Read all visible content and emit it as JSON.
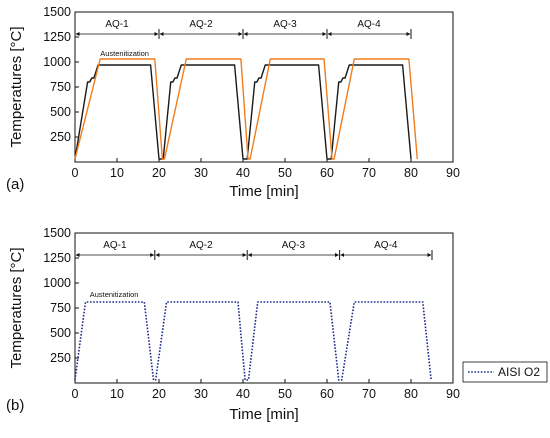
{
  "chart_data": [
    {
      "type": "line",
      "panel_label": "(a)",
      "xlabel": "Time [min]",
      "ylabel": "Temperatures [°C]",
      "xlim": [
        0,
        90
      ],
      "ylim": [
        0,
        1500
      ],
      "xticks": [
        0,
        10,
        20,
        30,
        40,
        50,
        60,
        70,
        80,
        90
      ],
      "yticks": [
        250,
        500,
        750,
        1000,
        1250,
        1500
      ],
      "grid": false,
      "segments": [
        {
          "label": "AQ-1",
          "start": 0,
          "end": 20
        },
        {
          "label": "AQ-2",
          "start": 20,
          "end": 40
        },
        {
          "label": "AQ-3",
          "start": 40,
          "end": 60
        },
        {
          "label": "AQ-4",
          "start": 60,
          "end": 80
        }
      ],
      "annotation": {
        "text": "Austenitization",
        "x": 6,
        "y": 1060
      },
      "series": [
        {
          "color": "#1a1a1a",
          "style": "solid",
          "x": [
            0,
            3,
            3.5,
            4,
            4.5,
            5.5,
            18,
            20,
            21,
            22.8,
            23.3,
            23.8,
            24.3,
            25.3,
            38,
            40,
            41,
            42.8,
            43.3,
            43.8,
            44.3,
            45.3,
            58,
            60,
            61,
            62.8,
            63.3,
            63.8,
            64.3,
            65.3,
            78,
            80
          ],
          "y": [
            30,
            800,
            800,
            840,
            840,
            970,
            970,
            30,
            30,
            800,
            800,
            840,
            840,
            970,
            970,
            30,
            30,
            800,
            800,
            840,
            840,
            970,
            970,
            30,
            30,
            800,
            800,
            840,
            840,
            970,
            970,
            30
          ]
        },
        {
          "color": "#f07d1e",
          "style": "solid",
          "x": [
            0,
            6,
            19,
            20.8,
            21.3,
            26.5,
            39.5,
            41.2,
            41.7,
            46.5,
            59.3,
            61.2,
            61.7,
            66.5,
            79.5,
            81.5
          ],
          "y": [
            30,
            1030,
            1030,
            30,
            30,
            1030,
            1030,
            30,
            30,
            1030,
            1030,
            30,
            30,
            1030,
            1030,
            30
          ]
        }
      ]
    },
    {
      "type": "line",
      "panel_label": "(b)",
      "xlabel": "Time [min]",
      "ylabel": "Temperatures [°C]",
      "xlim": [
        0,
        90
      ],
      "ylim": [
        0,
        1500
      ],
      "xticks": [
        0,
        10,
        20,
        30,
        40,
        50,
        60,
        70,
        80,
        90
      ],
      "yticks": [
        250,
        500,
        750,
        1000,
        1250,
        1500
      ],
      "grid": false,
      "segments": [
        {
          "label": "AQ-1",
          "start": 0,
          "end": 19
        },
        {
          "label": "AQ-2",
          "start": 19,
          "end": 41
        },
        {
          "label": "AQ-3",
          "start": 41,
          "end": 63
        },
        {
          "label": "AQ-4",
          "start": 63,
          "end": 85
        }
      ],
      "annotation": {
        "text": "Austenitization",
        "x": 3.5,
        "y": 860
      },
      "legend": {
        "position": "right"
      },
      "series": [
        {
          "name": "AISI O2",
          "color": "#1f2a8c",
          "style": "dotted",
          "x": [
            0,
            2.5,
            16.5,
            18.7,
            19.2,
            21.8,
            38.8,
            40.5,
            41.3,
            43.5,
            60.7,
            62.8,
            63.5,
            66.5,
            82.8,
            84.8
          ],
          "y": [
            30,
            810,
            810,
            30,
            30,
            810,
            810,
            30,
            30,
            810,
            810,
            30,
            30,
            810,
            810,
            30
          ]
        }
      ]
    }
  ]
}
